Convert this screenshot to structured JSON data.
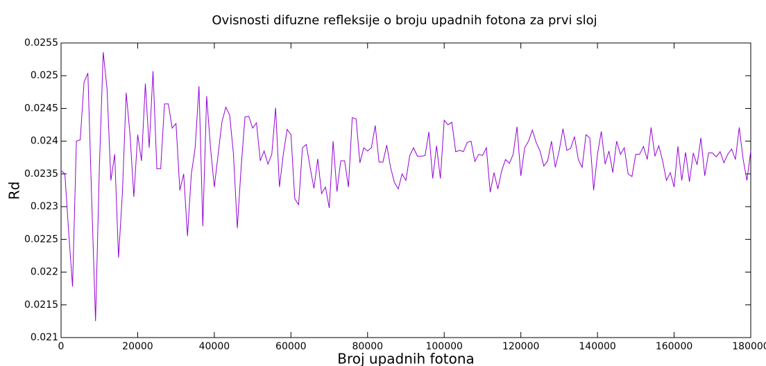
{
  "chart_data": {
    "type": "line",
    "title": "Ovisnosti difuzne refleksije o broju upadnih fotona za prvi sloj",
    "x_label": "Broj upadnih fotona",
    "y_label": "Rd",
    "color": "#9400d3",
    "x": [
      0,
      1000,
      2000,
      3000,
      4000,
      5000,
      6000,
      7000,
      8000,
      9000,
      10000,
      11000,
      12000,
      13000,
      14000,
      15000,
      16000,
      17000,
      18000,
      19000,
      20000,
      21000,
      22000,
      23000,
      24000,
      25000,
      26000,
      27000,
      28000,
      29000,
      30000,
      31000,
      32000,
      33000,
      34000,
      35000,
      36000,
      37000,
      38000,
      39000,
      40000,
      41000,
      42000,
      43000,
      44000,
      45000,
      46000,
      47000,
      48000,
      49000,
      50000,
      51000,
      52000,
      53000,
      54000,
      55000,
      56000,
      57000,
      58000,
      59000,
      60000,
      61000,
      62000,
      63000,
      64000,
      65000,
      66000,
      67000,
      68000,
      69000,
      70000,
      71000,
      72000,
      73000,
      74000,
      75000,
      76000,
      77000,
      78000,
      79000,
      80000,
      81000,
      82000,
      83000,
      84000,
      85000,
      86000,
      87000,
      88000,
      89000,
      90000,
      91000,
      92000,
      93000,
      94000,
      95000,
      96000,
      97000,
      98000,
      99000,
      100000,
      101000,
      102000,
      103000,
      104000,
      105000,
      106000,
      107000,
      108000,
      109000,
      110000,
      111000,
      112000,
      113000,
      114000,
      115000,
      116000,
      117000,
      118000,
      119000,
      120000,
      121000,
      122000,
      123000,
      124000,
      125000,
      126000,
      127000,
      128000,
      129000,
      130000,
      131000,
      132000,
      133000,
      134000,
      135000,
      136000,
      137000,
      138000,
      139000,
      140000,
      141000,
      142000,
      143000,
      144000,
      145000,
      146000,
      147000,
      148000,
      149000,
      150000,
      151000,
      152000,
      153000,
      154000,
      155000,
      156000,
      157000,
      158000,
      159000,
      160000,
      161000,
      162000,
      163000,
      164000,
      165000,
      166000,
      167000,
      168000,
      169000,
      170000,
      171000,
      172000,
      173000,
      174000,
      175000,
      176000,
      177000,
      178000,
      179000,
      180000
    ],
    "values": [
      0.02355,
      0.0235,
      0.0226,
      0.02178,
      0.024,
      0.02402,
      0.0249,
      0.02504,
      0.0231,
      0.02125,
      0.0236,
      0.02536,
      0.0248,
      0.0234,
      0.0238,
      0.02222,
      0.0232,
      0.02474,
      0.0241,
      0.02315,
      0.0241,
      0.0237,
      0.02488,
      0.0239,
      0.02507,
      0.02358,
      0.02358,
      0.02457,
      0.02457,
      0.0242,
      0.02427,
      0.02325,
      0.0235,
      0.02255,
      0.0235,
      0.0239,
      0.02484,
      0.0227,
      0.02469,
      0.0239,
      0.0233,
      0.0238,
      0.0243,
      0.02452,
      0.0244,
      0.0238,
      0.02267,
      0.0236,
      0.02437,
      0.02438,
      0.0242,
      0.02428,
      0.0237,
      0.02385,
      0.02365,
      0.0238,
      0.02451,
      0.0233,
      0.0238,
      0.02418,
      0.0241,
      0.02312,
      0.02303,
      0.0239,
      0.02395,
      0.0236,
      0.02328,
      0.02373,
      0.0232,
      0.0233,
      0.02298,
      0.024,
      0.02323,
      0.0237,
      0.0237,
      0.0233,
      0.02436,
      0.02434,
      0.02367,
      0.0239,
      0.02385,
      0.0239,
      0.02424,
      0.02368,
      0.02368,
      0.02394,
      0.0236,
      0.02337,
      0.02327,
      0.0235,
      0.0234,
      0.02378,
      0.0239,
      0.02377,
      0.02377,
      0.02378,
      0.02414,
      0.02343,
      0.02393,
      0.02343,
      0.02432,
      0.02425,
      0.02429,
      0.02384,
      0.02386,
      0.02384,
      0.02398,
      0.024,
      0.02369,
      0.0238,
      0.02378,
      0.0239,
      0.02322,
      0.02352,
      0.02327,
      0.02355,
      0.02372,
      0.02366,
      0.0238,
      0.02422,
      0.02347,
      0.0239,
      0.024,
      0.02417,
      0.02398,
      0.02385,
      0.02362,
      0.0237,
      0.024,
      0.0236,
      0.02385,
      0.02419,
      0.02386,
      0.02389,
      0.02407,
      0.02372,
      0.0236,
      0.0241,
      0.02405,
      0.02325,
      0.0238,
      0.02415,
      0.02365,
      0.02385,
      0.02352,
      0.024,
      0.0238,
      0.0239,
      0.0235,
      0.02346,
      0.0238,
      0.0238,
      0.02392,
      0.02372,
      0.02421,
      0.02377,
      0.02393,
      0.0237,
      0.0234,
      0.02352,
      0.0233,
      0.02392,
      0.0234,
      0.02383,
      0.02338,
      0.02382,
      0.02364,
      0.02405,
      0.02347,
      0.02382,
      0.02382,
      0.02376,
      0.02384,
      0.02367,
      0.0238,
      0.02388,
      0.02372,
      0.02421,
      0.02373,
      0.0234,
      0.02385
    ],
    "xlim": [
      0,
      180000
    ],
    "xticks": [
      0,
      20000,
      40000,
      60000,
      80000,
      100000,
      120000,
      140000,
      160000,
      180000
    ],
    "ylim": [
      0.021,
      0.0255
    ],
    "yticks": [
      0.021,
      0.0215,
      0.022,
      0.0225,
      0.023,
      0.0235,
      0.024,
      0.0245,
      0.025,
      0.0255
    ],
    "grid": false
  }
}
